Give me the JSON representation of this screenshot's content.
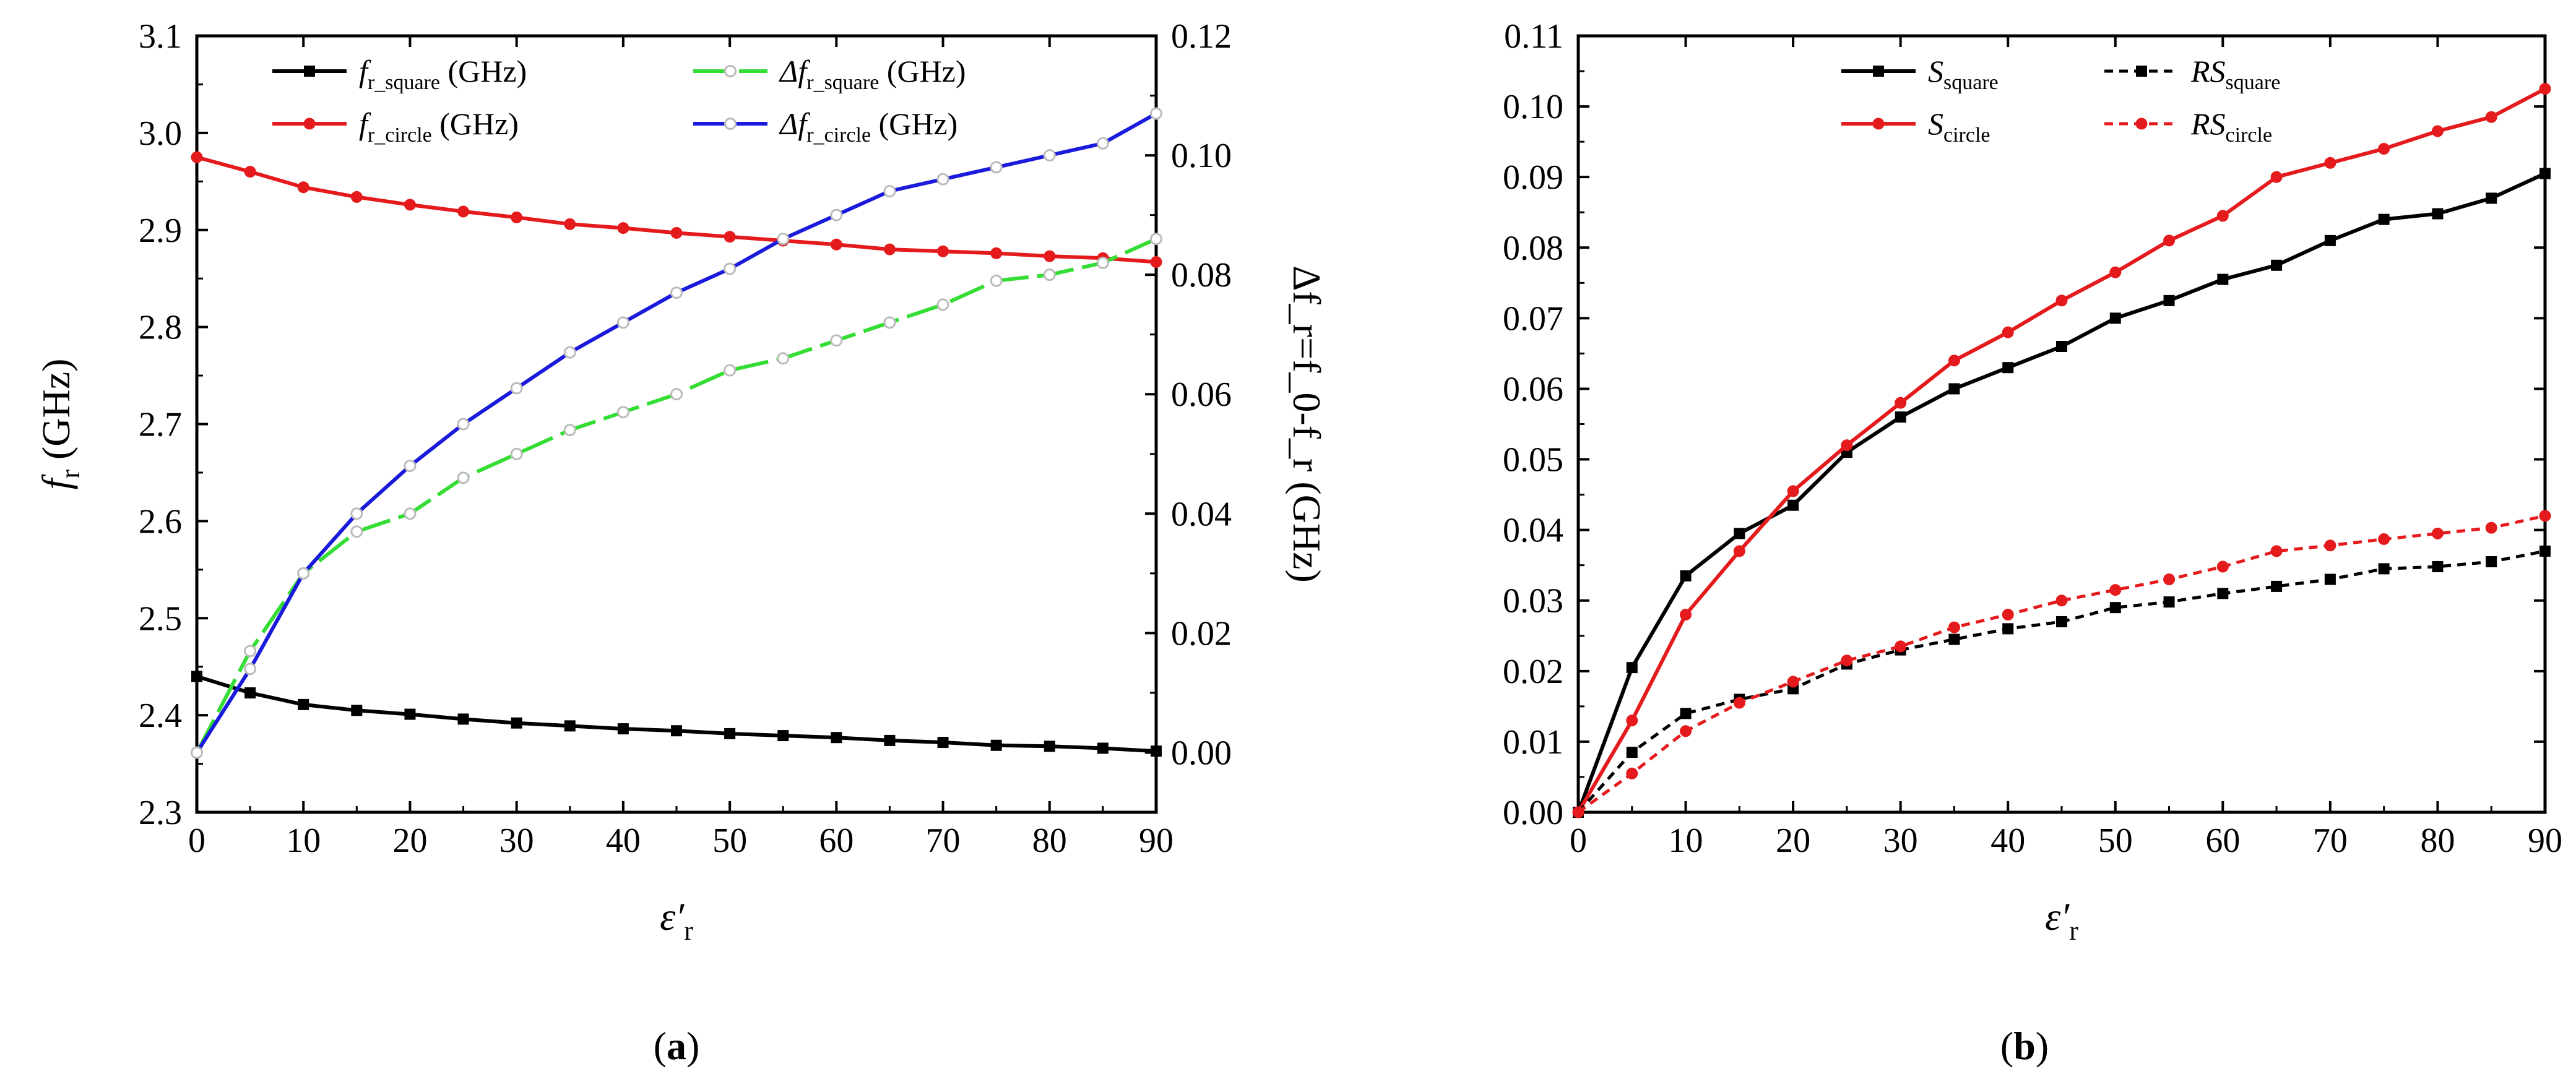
{
  "chart_data": [
    {
      "panel": "a",
      "panel_label": "a",
      "type": "line",
      "xlabel": "ε′",
      "xlabel_sub": "r",
      "ylabel_left": {
        "main": "f",
        "sub": "r",
        "tail": " (GHz)"
      },
      "ylabel_right": {
        "text": "Δf_r=f_0-f_r (GHz)"
      },
      "x": [
        0,
        5,
        10,
        15,
        20,
        25,
        30,
        35,
        40,
        45,
        50,
        55,
        60,
        65,
        70,
        75,
        80,
        85,
        90
      ],
      "xlim": [
        0,
        90
      ],
      "xticks": [
        "0",
        "10",
        "20",
        "30",
        "40",
        "50",
        "60",
        "70",
        "80",
        "90"
      ],
      "ylim_left": [
        2.3,
        3.1
      ],
      "yticks_left": [
        "2.3",
        "2.4",
        "2.5",
        "2.6",
        "2.7",
        "2.8",
        "2.9",
        "3.0",
        "3.1"
      ],
      "ylim_right": [
        -0.01,
        0.12
      ],
      "yticks_right": [
        "0.00",
        "0.02",
        "0.04",
        "0.06",
        "0.08",
        "0.10",
        "0.12"
      ],
      "series": [
        {
          "name": "f_r_square (GHz)",
          "legend": {
            "main": "f",
            "sub": "r_square",
            "tail": " (GHz)"
          },
          "axis": "left",
          "color": "#000000",
          "marker": "square",
          "dash": "solid",
          "values": [
            2.44,
            2.423,
            2.411,
            2.405,
            2.401,
            2.396,
            2.392,
            2.389,
            2.386,
            2.384,
            2.381,
            2.379,
            2.377,
            2.374,
            2.372,
            2.369,
            2.368,
            2.366,
            2.363
          ]
        },
        {
          "name": "f_r_circle (GHz)",
          "legend": {
            "main": "f",
            "sub": "r_circle",
            "tail": " (GHz)"
          },
          "axis": "left",
          "color": "#e41a1c",
          "marker": "circle",
          "dash": "solid",
          "values": [
            2.975,
            2.96,
            2.944,
            2.934,
            2.926,
            2.919,
            2.913,
            2.906,
            2.902,
            2.897,
            2.893,
            2.889,
            2.885,
            2.88,
            2.878,
            2.876,
            2.873,
            2.871,
            2.867
          ]
        },
        {
          "name": "Δf_r_square (GHz)",
          "legend": {
            "main": "Δf",
            "sub": "r_square",
            "tail": "  (GHz)"
          },
          "axis": "right",
          "color": "#33dd33",
          "marker": "open-circle",
          "dash": "long-dash",
          "values": [
            0.0,
            0.017,
            0.03,
            0.037,
            0.04,
            0.046,
            0.05,
            0.054,
            0.057,
            0.06,
            0.064,
            0.066,
            0.069,
            0.072,
            0.075,
            0.079,
            0.08,
            0.082,
            0.086
          ]
        },
        {
          "name": "Δf_r_circle (GHz)",
          "legend": {
            "main": "Δf",
            "sub": "r_circle",
            "tail": "  (GHz)"
          },
          "axis": "right",
          "color": "#1a1adc",
          "marker": "open-circle",
          "dash": "solid",
          "values": [
            0.0,
            0.014,
            0.03,
            0.04,
            0.048,
            0.055,
            0.061,
            0.067,
            0.072,
            0.077,
            0.081,
            0.086,
            0.09,
            0.094,
            0.096,
            0.098,
            0.1,
            0.102,
            0.107
          ]
        }
      ]
    },
    {
      "panel": "b",
      "panel_label": "b",
      "type": "line",
      "xlabel": "ε′",
      "xlabel_sub": "r",
      "x": [
        0,
        5,
        10,
        15,
        20,
        25,
        30,
        35,
        40,
        45,
        50,
        55,
        60,
        65,
        70,
        75,
        80,
        85,
        90
      ],
      "xlim": [
        0,
        90
      ],
      "xticks": [
        "0",
        "10",
        "20",
        "30",
        "40",
        "50",
        "60",
        "70",
        "80",
        "90"
      ],
      "ylim": [
        0.0,
        0.11
      ],
      "yticks": [
        "0.00",
        "0.01",
        "0.02",
        "0.03",
        "0.04",
        "0.05",
        "0.06",
        "0.07",
        "0.08",
        "0.09",
        "0.10",
        "0.11"
      ],
      "series": [
        {
          "name": "S_square",
          "legend": {
            "main": "S",
            "sub": "square"
          },
          "color": "#000000",
          "marker": "square",
          "dash": "solid",
          "values": [
            0.0,
            0.0205,
            0.0335,
            0.0395,
            0.0435,
            0.051,
            0.056,
            0.06,
            0.063,
            0.066,
            0.07,
            0.0725,
            0.0755,
            0.0775,
            0.081,
            0.084,
            0.0848,
            0.087,
            0.0905
          ]
        },
        {
          "name": "S_circle",
          "legend": {
            "main": "S",
            "sub": "circle"
          },
          "color": "#e41a1c",
          "marker": "circle",
          "dash": "solid",
          "values": [
            0.0,
            0.013,
            0.028,
            0.037,
            0.0455,
            0.052,
            0.058,
            0.064,
            0.068,
            0.0725,
            0.0765,
            0.081,
            0.0845,
            0.09,
            0.092,
            0.094,
            0.0965,
            0.0985,
            0.1025
          ]
        },
        {
          "name": "RS_square",
          "legend": {
            "main": "RS",
            "sub": "square"
          },
          "color": "#000000",
          "marker": "square",
          "dash": "dashed",
          "values": [
            0.0,
            0.0085,
            0.014,
            0.016,
            0.0175,
            0.021,
            0.023,
            0.0245,
            0.026,
            0.027,
            0.029,
            0.0298,
            0.031,
            0.032,
            0.033,
            0.0345,
            0.0348,
            0.0355,
            0.037
          ]
        },
        {
          "name": "RS_circle",
          "legend": {
            "main": "RS",
            "sub": "circle"
          },
          "color": "#e41a1c",
          "marker": "circle",
          "dash": "dashed",
          "values": [
            0.0,
            0.0055,
            0.0115,
            0.0155,
            0.0185,
            0.0215,
            0.0235,
            0.0262,
            0.028,
            0.03,
            0.0315,
            0.033,
            0.0348,
            0.037,
            0.0378,
            0.0387,
            0.0395,
            0.0403,
            0.042
          ]
        }
      ]
    }
  ]
}
